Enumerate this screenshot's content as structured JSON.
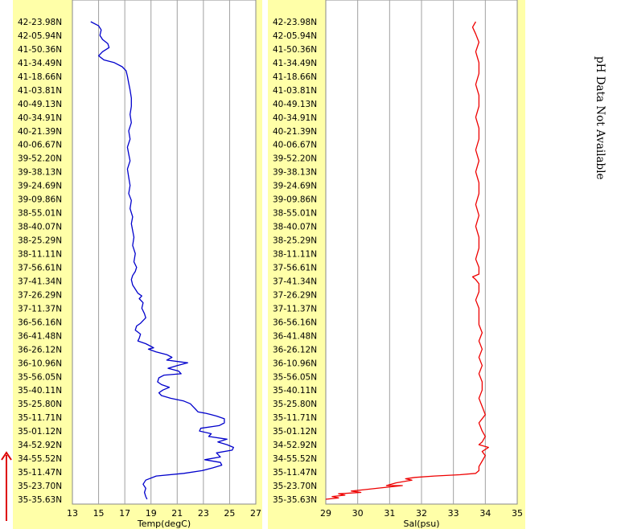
{
  "side_note": "pH Data Not Available",
  "chart_data": [
    {
      "type": "line",
      "xlabel": "Temp(degC)",
      "ylabel": "",
      "xlim": [
        13,
        27
      ],
      "xticks": [
        13,
        15,
        17,
        19,
        21,
        23,
        25,
        27
      ],
      "grid": true,
      "color": "#0000cc",
      "y_tick_labels": [
        "42-23.98N",
        "42-05.94N",
        "41-50.36N",
        "41-34.49N",
        "41-18.66N",
        "41-03.81N",
        "40-49.13N",
        "40-34.91N",
        "40-21.39N",
        "40-06.67N",
        "39-52.20N",
        "39-38.13N",
        "39-24.69N",
        "39-09.86N",
        "38-55.01N",
        "38-40.07N",
        "38-25.29N",
        "38-11.11N",
        "37-56.61N",
        "37-41.34N",
        "37-26.29N",
        "37-11.37N",
        "36-56.16N",
        "36-41.48N",
        "36-26.12N",
        "36-10.96N",
        "35-56.05N",
        "35-40.11N",
        "35-25.80N",
        "35-11.71N",
        "35-01.12N",
        "34-52.92N",
        "34-55.52N",
        "35-11.47N",
        "35-23.70N",
        "35-35.63N"
      ],
      "series": [
        {
          "x": [
            14.4,
            15.0,
            15.2,
            15.1,
            15.3,
            15.7,
            15.8,
            15.3,
            15.0,
            15.4,
            16.2,
            16.8,
            17.1,
            17.2,
            17.3,
            17.4,
            17.5,
            17.5,
            17.4,
            17.5,
            17.3,
            17.4,
            17.2,
            17.3,
            17.4,
            17.2,
            17.3,
            17.4,
            17.3,
            17.5,
            17.4,
            17.6,
            17.5,
            17.6,
            17.7,
            17.6,
            17.8,
            17.7,
            17.9,
            17.8,
            17.6,
            17.5,
            17.6,
            17.8,
            18.0,
            18.3,
            18.1,
            18.4,
            18.3,
            18.5,
            18.6,
            18.4,
            18.2,
            17.9,
            17.8,
            18.2,
            18.1,
            18.0,
            18.6,
            19.2,
            18.8,
            19.4,
            20.2,
            20.6,
            20.2,
            21.8,
            21.0,
            20.3,
            21.1,
            21.3,
            20.0,
            19.6,
            19.5,
            19.8,
            20.4,
            19.9,
            19.6,
            19.8,
            20.5,
            21.5,
            22.0,
            22.2,
            22.4,
            22.6,
            23.2,
            23.6,
            24.0,
            24.6,
            24.6,
            24.2,
            22.8,
            22.7,
            23.6,
            23.4,
            24.8,
            24.1,
            24.8,
            25.3,
            25.2,
            24.0,
            24.3,
            23.1,
            24.3,
            24.4,
            23.7,
            22.9,
            21.5,
            19.4,
            18.6,
            18.4,
            18.6,
            18.5,
            18.6,
            18.7
          ],
          "y": [
            0.0,
            0.3,
            0.6,
            1.0,
            1.3,
            1.6,
            1.9,
            2.2,
            2.5,
            2.8,
            3.0,
            3.3,
            3.6,
            4.0,
            4.5,
            5.0,
            5.6,
            6.2,
            6.8,
            7.4,
            8.0,
            8.6,
            9.2,
            9.7,
            10.2,
            10.8,
            11.4,
            12.0,
            12.6,
            13.1,
            13.7,
            14.3,
            14.8,
            15.3,
            15.8,
            16.4,
            17.0,
            17.6,
            18.0,
            18.3,
            18.6,
            18.9,
            19.3,
            19.6,
            19.9,
            20.1,
            20.3,
            20.6,
            21.0,
            21.4,
            21.7,
            21.9,
            22.1,
            22.3,
            22.6,
            22.9,
            23.2,
            23.4,
            23.6,
            23.9,
            24.0,
            24.2,
            24.4,
            24.6,
            24.8,
            25.0,
            25.2,
            25.4,
            25.6,
            25.8,
            25.9,
            26.1,
            26.4,
            26.6,
            26.8,
            27.0,
            27.2,
            27.4,
            27.6,
            27.8,
            28.0,
            28.2,
            28.4,
            28.6,
            28.7,
            28.8,
            28.9,
            29.1,
            29.4,
            29.6,
            29.8,
            30.0,
            30.2,
            30.4,
            30.6,
            30.8,
            31.0,
            31.2,
            31.4,
            31.6,
            31.9,
            32.1,
            32.3,
            32.5,
            32.7,
            32.9,
            33.1,
            33.3,
            33.6,
            33.9,
            34.2,
            34.5,
            34.8,
            35.0
          ]
        }
      ]
    },
    {
      "type": "line",
      "xlabel": "Sal(psu)",
      "ylabel": "",
      "xlim": [
        29,
        35
      ],
      "xticks": [
        29,
        30,
        31,
        32,
        33,
        34,
        35
      ],
      "grid": true,
      "color": "#ee0000",
      "y_tick_labels": [
        "42-23.98N",
        "42-05.94N",
        "41-50.36N",
        "41-34.49N",
        "41-18.66N",
        "41-03.81N",
        "40-49.13N",
        "40-34.91N",
        "40-21.39N",
        "40-06.67N",
        "39-52.20N",
        "39-38.13N",
        "39-24.69N",
        "39-09.86N",
        "38-55.01N",
        "38-40.07N",
        "38-25.29N",
        "38-11.11N",
        "37-56.61N",
        "37-41.34N",
        "37-26.29N",
        "37-11.37N",
        "36-56.16N",
        "36-41.48N",
        "36-26.12N",
        "36-10.96N",
        "35-56.05N",
        "35-40.11N",
        "35-25.80N",
        "35-11.71N",
        "35-01.12N",
        "34-52.92N",
        "34-55.52N",
        "35-11.47N",
        "35-23.70N",
        "35-35.63N"
      ],
      "series": [
        {
          "x": [
            33.7,
            33.6,
            33.7,
            33.8,
            33.7,
            33.8,
            33.8,
            33.7,
            33.8,
            33.8,
            33.7,
            33.8,
            33.8,
            33.7,
            33.8,
            33.7,
            33.8,
            33.8,
            33.7,
            33.8,
            33.7,
            33.8,
            33.8,
            33.7,
            33.8,
            33.8,
            33.6,
            33.7,
            33.8,
            33.8,
            33.7,
            33.8,
            33.8,
            33.8,
            33.9,
            33.8,
            33.9,
            33.8,
            33.9,
            33.8,
            33.9,
            33.9,
            33.8,
            33.9,
            34.0,
            33.8,
            33.9,
            34.0,
            33.9,
            33.8,
            34.1,
            33.9,
            34.0,
            33.9,
            33.8,
            33.8,
            33.7,
            33.2,
            32.4,
            31.8,
            31.5,
            31.7,
            31.2,
            30.9,
            31.4,
            30.6,
            30.2,
            29.8,
            30.1,
            29.4,
            29.6,
            29.2,
            29.4,
            29.0
          ],
          "y": [
            0.0,
            0.4,
            0.9,
            1.5,
            2.2,
            3.0,
            3.8,
            4.6,
            5.4,
            6.2,
            7.0,
            7.8,
            8.6,
            9.4,
            10.2,
            11.0,
            11.8,
            12.6,
            13.4,
            14.2,
            15.0,
            15.8,
            16.6,
            17.4,
            18.0,
            18.5,
            18.7,
            18.9,
            19.2,
            19.8,
            20.4,
            21.0,
            21.6,
            22.2,
            22.8,
            23.4,
            24.0,
            24.6,
            25.2,
            25.8,
            26.4,
            27.0,
            27.6,
            28.2,
            28.8,
            29.4,
            30.0,
            30.4,
            30.8,
            31.0,
            31.2,
            31.5,
            31.8,
            32.2,
            32.6,
            32.9,
            33.1,
            33.2,
            33.3,
            33.4,
            33.5,
            33.6,
            33.8,
            34.0,
            34.0,
            34.2,
            34.3,
            34.4,
            34.5,
            34.6,
            34.7,
            34.8,
            34.9,
            35.0
          ]
        }
      ]
    }
  ]
}
